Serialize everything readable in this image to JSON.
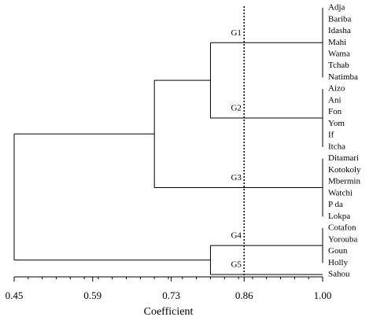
{
  "chart_data": {
    "type": "dendrogram",
    "x_label": "Coefficient",
    "xlim": [
      0.45,
      1.0
    ],
    "xticks": [
      0.45,
      0.59,
      0.73,
      0.86,
      {
        "value": 1.0,
        "label": "1.00"
      }
    ],
    "cutoff": 0.86,
    "tree": {
      "height": 0.45,
      "children": [
        {
          "height": 0.7,
          "children": [
            {
              "height": 0.8,
              "children": [
                {
                  "label": "G1",
                  "height": 1.0,
                  "children": [
                    "Adja",
                    "Bariba",
                    "Idasha",
                    "Mahi",
                    "Wama",
                    "Tchab",
                    "Natimba"
                  ]
                },
                {
                  "label": "G2",
                  "height": 1.0,
                  "children": [
                    "Aizo",
                    "Ani",
                    "Fon",
                    "Yom",
                    "If",
                    "Itcha"
                  ]
                }
              ]
            },
            {
              "label": "G3",
              "height": 1.0,
              "children": [
                "Ditamari",
                "Kotokoly",
                "Mbermin",
                "Watchi",
                "P da",
                "Lokpa"
              ]
            }
          ]
        },
        {
          "height": 0.8,
          "children": [
            {
              "label": "G4",
              "height": 1.0,
              "children": [
                "Cotafon",
                "Yorouba",
                "Goun",
                "Holly"
              ]
            },
            {
              "label": "G5",
              "height": 1.0,
              "children": [
                "Sahou"
              ]
            }
          ]
        }
      ]
    }
  }
}
